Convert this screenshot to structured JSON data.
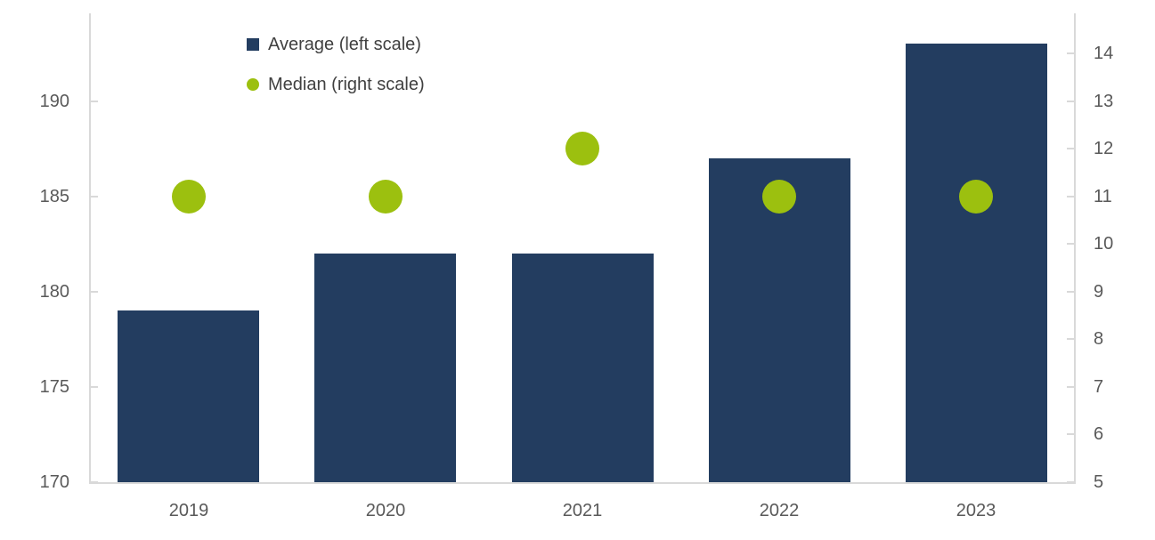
{
  "chart_data": {
    "type": "bar",
    "subtype": "combo-bar-scatter-dual-axis",
    "title": "",
    "xlabel": "",
    "ylabel": "",
    "grid": false,
    "legend_position": "top-left-inside",
    "categories": [
      "2019",
      "2020",
      "2021",
      "2022",
      "2023"
    ],
    "series": [
      {
        "name": "Average (left scale)",
        "chart_type": "bar",
        "axis": "left",
        "color": "#233D60",
        "values": [
          179,
          182,
          182,
          187,
          193
        ]
      },
      {
        "name": "Median (right scale)",
        "chart_type": "scatter",
        "axis": "right",
        "color": "#9CC00F",
        "values": [
          11,
          11,
          12,
          11,
          11
        ]
      }
    ],
    "axes": {
      "left": {
        "min": 170,
        "max": 194.6,
        "ticks": [
          170,
          175,
          180,
          185,
          190
        ]
      },
      "right": {
        "min": 5,
        "max": 14.84,
        "ticks": [
          5,
          6,
          7,
          8,
          9,
          10,
          11,
          12,
          13,
          14
        ]
      },
      "x": {
        "labels": [
          "2019",
          "2020",
          "2021",
          "2022",
          "2023"
        ]
      }
    }
  },
  "legend": {
    "items": [
      {
        "label": "Average (left scale)",
        "marker": "square",
        "color": "#233D60"
      },
      {
        "label": "Median (right scale)",
        "marker": "circle",
        "color": "#9CC00F"
      }
    ]
  },
  "colors": {
    "bar": "#233D60",
    "dot": "#9CC00F",
    "axis_line": "#D9D9D9",
    "tick_label": "#595959",
    "legend_text": "#404040",
    "background": "#FFFFFF"
  }
}
